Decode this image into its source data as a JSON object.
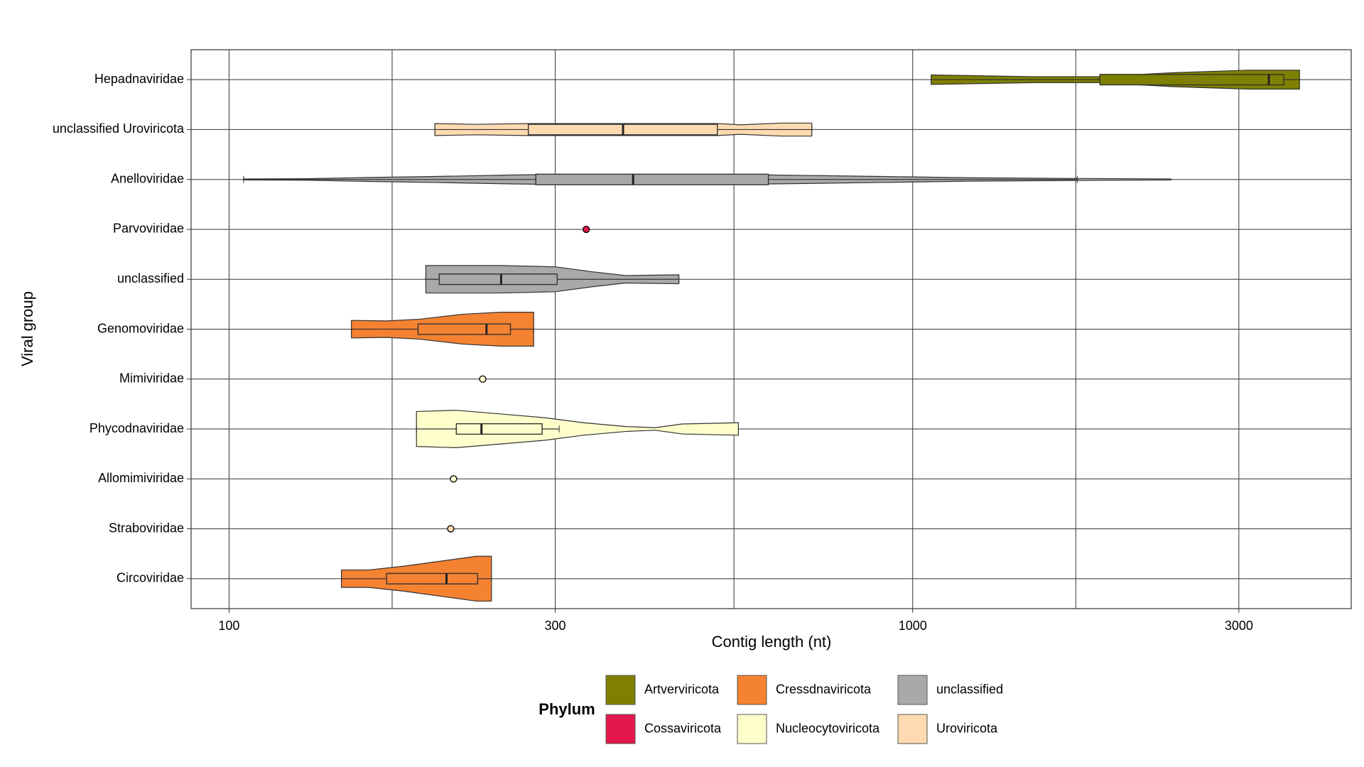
{
  "chart_data": {
    "type": "violin",
    "x_label": "Contig length (nt)",
    "y_label": "Viral group",
    "log_x": true,
    "xlim": [
      88,
      4380
    ],
    "xticks": [
      100,
      300,
      1000,
      3000
    ],
    "xminor": [
      173.2,
      547.7,
      1732
    ],
    "grid": true,
    "legend": {
      "title": "Phylum",
      "position": "bottom"
    },
    "series": [
      {
        "name": "Artverviricota",
        "color": "#808000"
      },
      {
        "name": "Cossaviricota",
        "color": "#e3184a"
      },
      {
        "name": "Cressdnaviricota",
        "color": "#f58231"
      },
      {
        "name": "Nucleocytoviricota",
        "color": "#ffffcc"
      },
      {
        "name": "unclassified",
        "color": "#a9a9a9"
      },
      {
        "name": "Uroviricota",
        "color": "#ffdab0"
      }
    ],
    "categories": [
      "Hepadnaviridae",
      "unclassified Uroviricota",
      "Anelloviridae",
      "Parvoviridae",
      "unclassified",
      "Genomoviridae",
      "Mimiviridae",
      "Phycodnaviridae",
      "Allomimiviridae",
      "Straboviridae",
      "Circoviridae"
    ],
    "groups": [
      {
        "phylum": "Artverviricota",
        "lower": 1064,
        "q1": 1879,
        "median": 3319,
        "q3": 3491,
        "upper": 3680,
        "violin": {
          "x": [
            1064,
            1500,
            1880,
            2400,
            3100,
            3680
          ],
          "width": [
            0.19,
            0.12,
            0.12,
            0.28,
            0.38,
            0.38
          ]
        }
      },
      {
        "phylum": "Uroviricota",
        "lower": 200,
        "q1": 274,
        "median": 377,
        "q3": 518,
        "upper": 712,
        "violin": {
          "x": [
            200,
            230,
            274,
            518,
            560,
            640,
            712
          ],
          "width": [
            0.24,
            0.21,
            0.24,
            0.24,
            0.19,
            0.26,
            0.26
          ]
        }
      },
      {
        "phylum": "unclassified",
        "lower": 105,
        "q1": 281,
        "median": 390,
        "q3": 615,
        "upper": 1741,
        "violin": {
          "x": [
            105,
            130,
            160,
            200,
            260,
            300,
            390,
            620,
            900,
            1200,
            1741,
            2386
          ],
          "width": [
            0.02,
            0.03,
            0.08,
            0.12,
            0.18,
            0.2,
            0.2,
            0.18,
            0.12,
            0.07,
            0.04,
            0.02
          ]
        }
      },
      {
        "phylum": "Cossaviricota",
        "points": [
          333
        ]
      },
      {
        "phylum": "unclassified",
        "lower": 194,
        "q1": 203,
        "median": 250,
        "q3": 302,
        "upper": 455,
        "violin": {
          "x": [
            194,
            250,
            300,
            340,
            380,
            455
          ],
          "width": [
            0.55,
            0.55,
            0.5,
            0.3,
            0.15,
            0.18
          ]
        }
      },
      {
        "phylum": "Cressdnaviricota",
        "lower": 151,
        "q1": 189,
        "median": 238,
        "q3": 258,
        "upper": 279,
        "violin": {
          "x": [
            151,
            170,
            190,
            220,
            250,
            279
          ],
          "width": [
            0.35,
            0.33,
            0.4,
            0.6,
            0.68,
            0.68
          ]
        }
      },
      {
        "phylum": "Nucleocytoviricota",
        "points": [
          235
        ]
      },
      {
        "phylum": "Nucleocytoviricota",
        "lower": 188,
        "q1": 215,
        "median": 234,
        "q3": 287,
        "upper": 304,
        "violin": {
          "x": [
            188,
            215,
            250,
            290,
            330,
            380,
            420,
            460,
            556
          ],
          "width": [
            0.7,
            0.75,
            0.6,
            0.45,
            0.25,
            0.1,
            0.05,
            0.2,
            0.25
          ]
        }
      },
      {
        "phylum": "Nucleocytoviricota",
        "points": [
          213
        ]
      },
      {
        "phylum": "Uroviricota",
        "points": [
          211
        ]
      },
      {
        "phylum": "Cressdnaviricota",
        "lower": 146,
        "q1": 170,
        "median": 208,
        "q3": 231,
        "upper": 242,
        "violin": {
          "x": [
            146,
            160,
            180,
            210,
            230,
            242
          ],
          "width": [
            0.35,
            0.35,
            0.5,
            0.75,
            0.9,
            0.9
          ]
        }
      }
    ]
  }
}
